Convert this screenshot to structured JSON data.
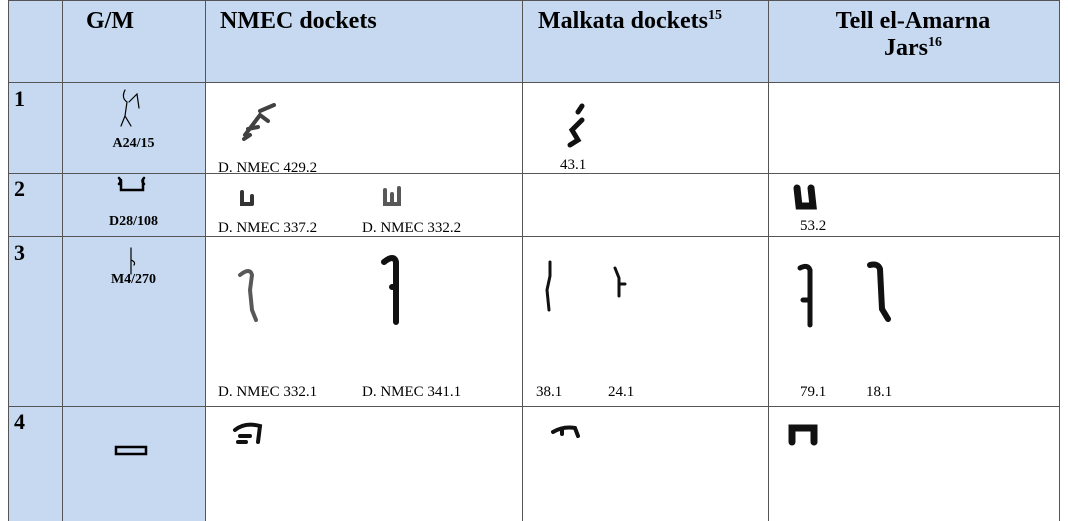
{
  "table": {
    "header": {
      "gm": "G/M",
      "nmec": "NMEC dockets",
      "malkata": {
        "text": "Malkata dockets",
        "footnote": "15"
      },
      "amarna": {
        "text": "Tell el-Amarna Jars",
        "footnote": "16"
      }
    },
    "rows": [
      {
        "number": "1",
        "sign": "A24/15",
        "nmec": [
          "D. NMEC 429.2"
        ],
        "malkata": [
          "43.1"
        ]
      },
      {
        "number": "2",
        "sign": "D28/108",
        "nmec": [
          "D. NMEC 337.2",
          "D. NMEC 332.2"
        ],
        "amarna": [
          "53.2"
        ]
      },
      {
        "number": "3",
        "sign": "M4/270",
        "nmec": [
          "D. NMEC 332.1",
          "D. NMEC 341.1"
        ],
        "malkata": [
          "38.1",
          "24.1"
        ],
        "amarna": [
          "79.1",
          "18.1"
        ]
      },
      {
        "number": "4"
      }
    ]
  }
}
